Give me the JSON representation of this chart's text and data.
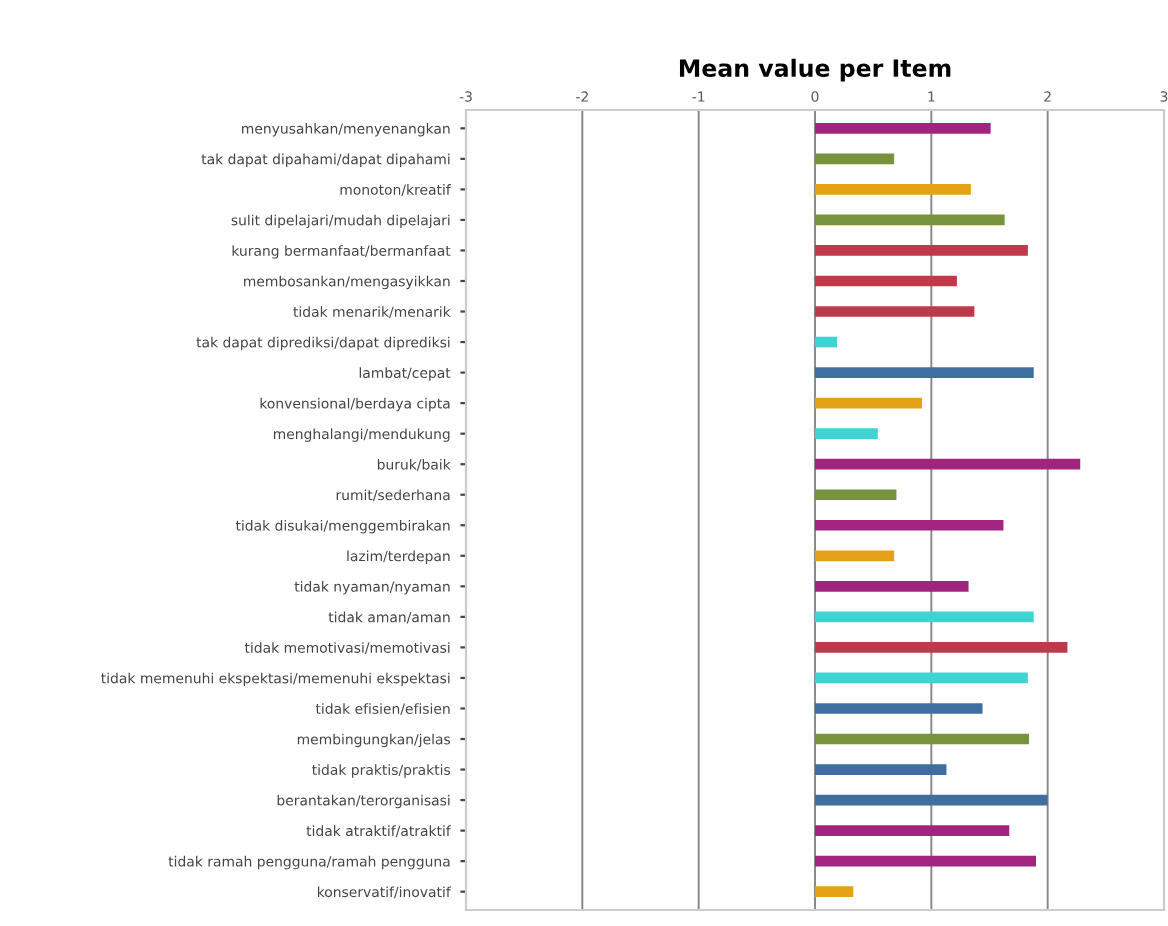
{
  "chart_data": {
    "type": "bar",
    "orientation": "horizontal",
    "title": "Mean value per Item",
    "categories": [
      "menyusahkan/menyenangkan",
      "tak dapat dipahami/dapat dipahami",
      "monoton/kreatif",
      "sulit dipelajari/mudah dipelajari",
      "kurang bermanfaat/bermanfaat",
      "membosankan/mengasyikkan",
      "tidak menarik/menarik",
      "tak dapat diprediksi/dapat diprediksi",
      "lambat/cepat",
      "konvensional/berdaya cipta",
      "menghalangi/mendukung",
      "buruk/baik",
      "rumit/sederhana",
      "tidak disukai/menggembirakan",
      "lazim/terdepan",
      "tidak nyaman/nyaman",
      "tidak aman/aman",
      "tidak memotivasi/memotivasi",
      "tidak memenuhi ekspektasi/memenuhi ekspektasi",
      "tidak efisien/efisien",
      "membingungkan/jelas",
      "tidak praktis/praktis",
      "berantakan/terorganisasi",
      "tidak atraktif/atraktif",
      "tidak ramah pengguna/ramah pengguna",
      "konservatif/inovatif"
    ],
    "values": [
      1.51,
      0.68,
      1.34,
      1.63,
      1.83,
      1.22,
      1.37,
      0.19,
      1.88,
      0.92,
      0.54,
      2.28,
      0.7,
      1.62,
      0.68,
      1.32,
      1.88,
      2.17,
      1.83,
      1.44,
      1.84,
      1.13,
      2.0,
      1.67,
      1.9,
      0.33
    ],
    "colors": [
      "#a3247f",
      "#77933c",
      "#e5a216",
      "#77933c",
      "#c0394b",
      "#c0394b",
      "#c0394b",
      "#3fd3d3",
      "#3f6ea0",
      "#e5a216",
      "#3fd3d3",
      "#a3247f",
      "#77933c",
      "#a3247f",
      "#e5a216",
      "#a3247f",
      "#3fd3d3",
      "#c0394b",
      "#3fd3d3",
      "#3f6ea0",
      "#77933c",
      "#3f6ea0",
      "#3f6ea0",
      "#a3247f",
      "#a3247f",
      "#e5a216"
    ],
    "xlim": [
      -3,
      3
    ],
    "xticks": [
      -3,
      -2,
      -1,
      0,
      1,
      2,
      3
    ],
    "grid": "x"
  }
}
